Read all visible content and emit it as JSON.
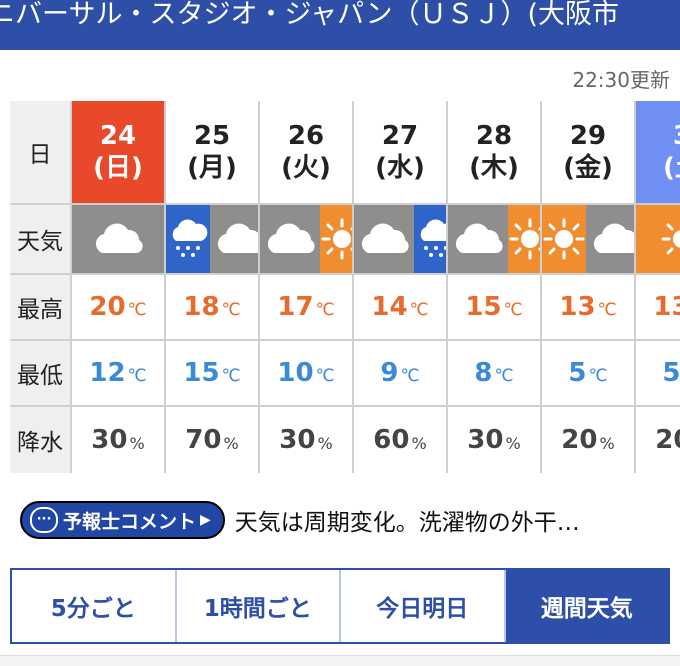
{
  "header": {
    "title": "ニバーサル・スタジオ・ジャパン（ＵＳＪ）(大阪市"
  },
  "updated": "22:30更新",
  "row_labels": {
    "day": "日",
    "weather": "天気",
    "high": "最高",
    "low": "最低",
    "precip": "降水"
  },
  "units": {
    "temp": "℃",
    "precip": "%"
  },
  "days": [
    {
      "date": "24",
      "dow": "(日)",
      "high": "20",
      "low": "12",
      "precip": "30",
      "weather": [
        "cloud"
      ]
    },
    {
      "date": "25",
      "dow": "(月)",
      "high": "18",
      "low": "15",
      "precip": "70",
      "weather": [
        "rain",
        "cloud"
      ]
    },
    {
      "date": "26",
      "dow": "(火)",
      "high": "17",
      "low": "10",
      "precip": "30",
      "weather": [
        "cloud",
        "sun"
      ]
    },
    {
      "date": "27",
      "dow": "(水)",
      "high": "14",
      "low": "9",
      "precip": "60",
      "weather": [
        "cloud",
        "rain"
      ]
    },
    {
      "date": "28",
      "dow": "(木)",
      "high": "15",
      "low": "8",
      "precip": "30",
      "weather": [
        "cloud",
        "sun"
      ]
    },
    {
      "date": "29",
      "dow": "(金)",
      "high": "13",
      "low": "5",
      "precip": "20",
      "weather": [
        "sun",
        "cloud"
      ]
    },
    {
      "date": "3",
      "dow": "(土",
      "high": "13",
      "low": "5",
      "precip": "20",
      "weather": [
        "sun"
      ]
    }
  ],
  "comment": {
    "badge": "予報士コメント",
    "text": "天気は周期変化。洗濯物の外干…"
  },
  "tabs": [
    "5分ごと",
    "1時間ごと",
    "今日明日",
    "週間天気"
  ],
  "colors": {
    "today": "#e8492a",
    "saturday": "#6f8ff3",
    "high": "#e86a2c",
    "low": "#3a8ad6",
    "brand": "#2e4fa8"
  }
}
